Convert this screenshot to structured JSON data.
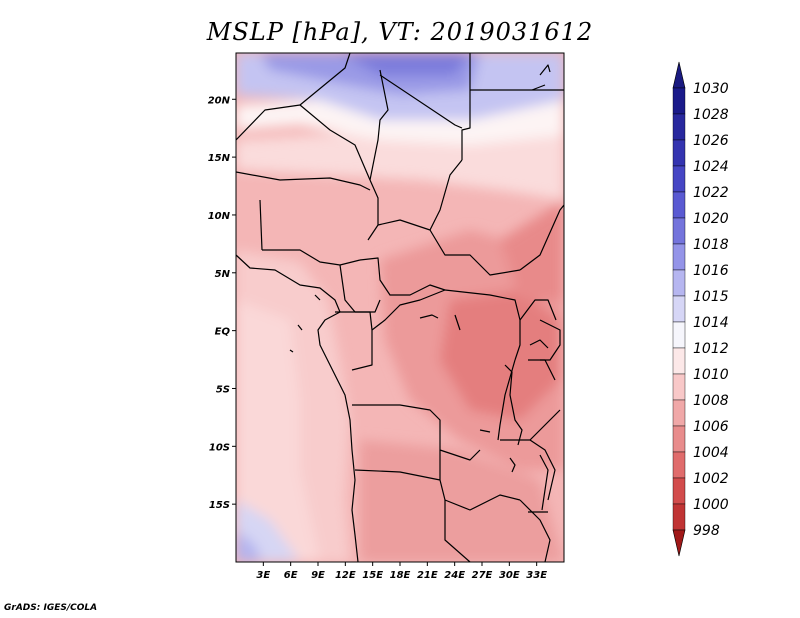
{
  "title": "MSLP [hPa], VT: 2019031612",
  "credit": "GrADS: IGES/COLA",
  "map": {
    "lon_range": [
      0,
      36
    ],
    "lat_range": [
      -20,
      24
    ],
    "lat_ticks": [
      {
        "value": 20,
        "label": "20N"
      },
      {
        "value": 15,
        "label": "15N"
      },
      {
        "value": 10,
        "label": "10N"
      },
      {
        "value": 5,
        "label": "5N"
      },
      {
        "value": 0,
        "label": "EQ"
      },
      {
        "value": -5,
        "label": "5S"
      },
      {
        "value": -10,
        "label": "10S"
      },
      {
        "value": -15,
        "label": "15S"
      }
    ],
    "lon_ticks": [
      {
        "value": 3,
        "label": "3E"
      },
      {
        "value": 6,
        "label": "6E"
      },
      {
        "value": 9,
        "label": "9E"
      },
      {
        "value": 12,
        "label": "12E"
      },
      {
        "value": 15,
        "label": "15E"
      },
      {
        "value": 18,
        "label": "18E"
      },
      {
        "value": 21,
        "label": "21E"
      },
      {
        "value": 24,
        "label": "24E"
      },
      {
        "value": 27,
        "label": "27E"
      },
      {
        "value": 30,
        "label": "30E"
      },
      {
        "value": 33,
        "label": "33E"
      }
    ]
  },
  "colorbar": {
    "levels": [
      {
        "label": "1030",
        "color": "#1a1a8a"
      },
      {
        "label": "1028",
        "color": "#28289e"
      },
      {
        "label": "1026",
        "color": "#3434b0"
      },
      {
        "label": "1024",
        "color": "#4646c4"
      },
      {
        "label": "1022",
        "color": "#5a5ad2"
      },
      {
        "label": "1020",
        "color": "#7474dc"
      },
      {
        "label": "1018",
        "color": "#9494e8"
      },
      {
        "label": "1016",
        "color": "#b6b6f0"
      },
      {
        "label": "1015",
        "color": "#d6d6f6"
      },
      {
        "label": "1014",
        "color": "#f6f6fc"
      },
      {
        "label": "1012",
        "color": "#fce8e8"
      },
      {
        "label": "1010",
        "color": "#f8c8c8"
      },
      {
        "label": "1008",
        "color": "#f0a8a8"
      },
      {
        "label": "1006",
        "color": "#e88c8c"
      },
      {
        "label": "1004",
        "color": "#e06c6c"
      },
      {
        "label": "1002",
        "color": "#d24c4c"
      },
      {
        "label": "1000",
        "color": "#c03434"
      },
      {
        "label": "998",
        "color": "#a81e1e"
      }
    ],
    "top_arrow_color": "#1a1a80",
    "bottom_arrow_color": "#a01818"
  }
}
